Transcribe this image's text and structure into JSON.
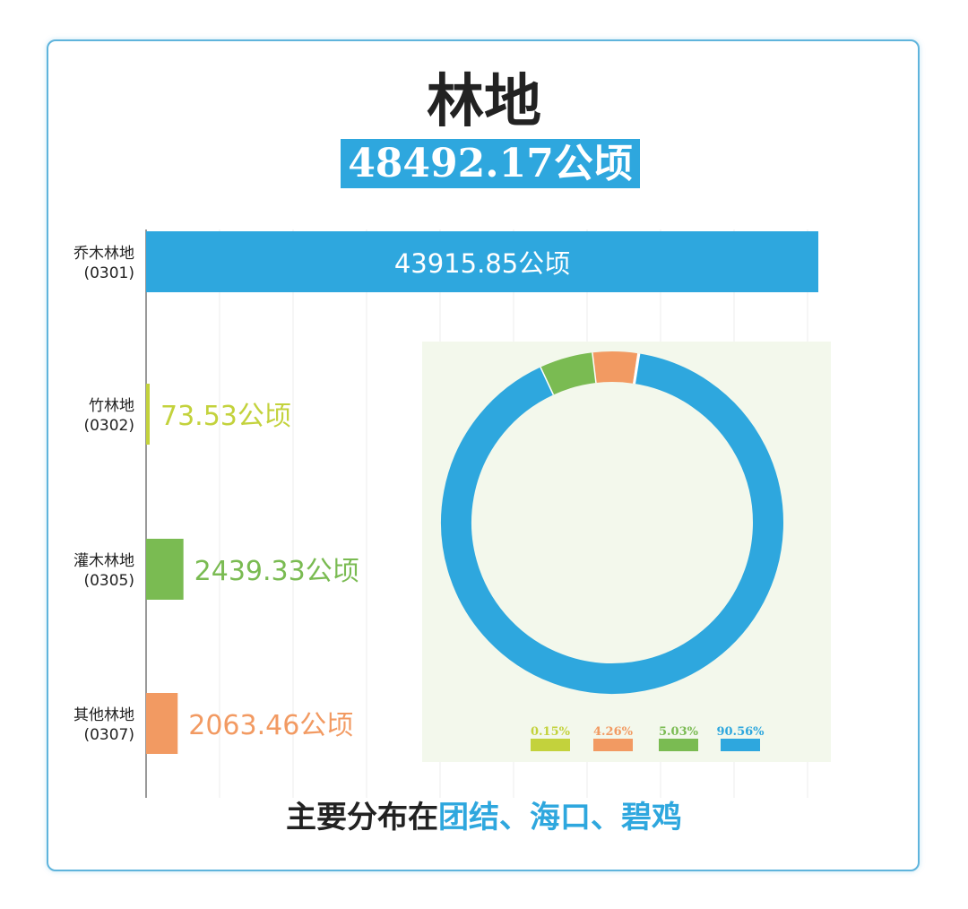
{
  "header": {
    "title": "林地",
    "total": "48492.17公顷"
  },
  "footer": {
    "lead": "主要分布在",
    "places": "团结、海口、碧鸡"
  },
  "chart_data": [
    {
      "type": "bar",
      "orientation": "horizontal",
      "categories": [
        {
          "name": "乔木林地",
          "code": "(0301)"
        },
        {
          "name": "竹林地",
          "code": "(0302)"
        },
        {
          "name": "灌木林地",
          "code": "(0305)"
        },
        {
          "name": "其他林地",
          "code": "(0307)"
        }
      ],
      "values": [
        43915.85,
        73.53,
        2439.33,
        2063.46
      ],
      "value_labels": [
        "43915.85公顷",
        "73.53公顷",
        "2439.33公顷",
        "2063.46公顷"
      ],
      "colors": [
        "#2ea7de",
        "#c3d23c",
        "#7abb52",
        "#f29a62"
      ],
      "xlim": [
        0,
        45000
      ],
      "grid": true
    },
    {
      "type": "pie",
      "donut": true,
      "slices": [
        {
          "label": "0.15%",
          "value": 0.15,
          "color": "#c3d23c"
        },
        {
          "label": "4.26%",
          "value": 4.26,
          "color": "#f29a62"
        },
        {
          "label": "5.03%",
          "value": 5.03,
          "color": "#7abb52"
        },
        {
          "label": "90.56%",
          "value": 90.56,
          "color": "#2ea7de"
        }
      ],
      "legend": "bottom"
    }
  ]
}
